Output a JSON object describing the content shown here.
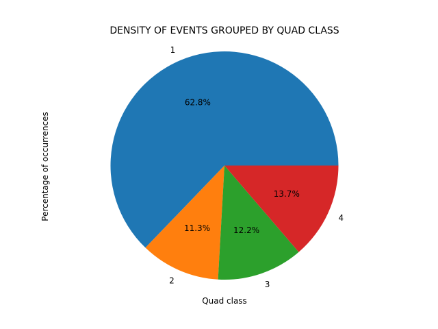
{
  "chart_data": {
    "type": "pie",
    "title": "DENSITY OF EVENTS GROUPED BY QUAD CLASS",
    "xlabel": "Quad class",
    "ylabel": "Percentage of occurrences",
    "categories": [
      "1",
      "2",
      "3",
      "4"
    ],
    "values": [
      62.8,
      11.3,
      12.2,
      13.7
    ],
    "value_labels": [
      "62.8%",
      "11.3%",
      "12.2%",
      "13.7%"
    ],
    "colors": [
      "#1f77b4",
      "#ff7f0e",
      "#2ca02c",
      "#d62728"
    ],
    "start_angle_deg": 0,
    "direction": "counterclockwise",
    "legend": "none"
  }
}
